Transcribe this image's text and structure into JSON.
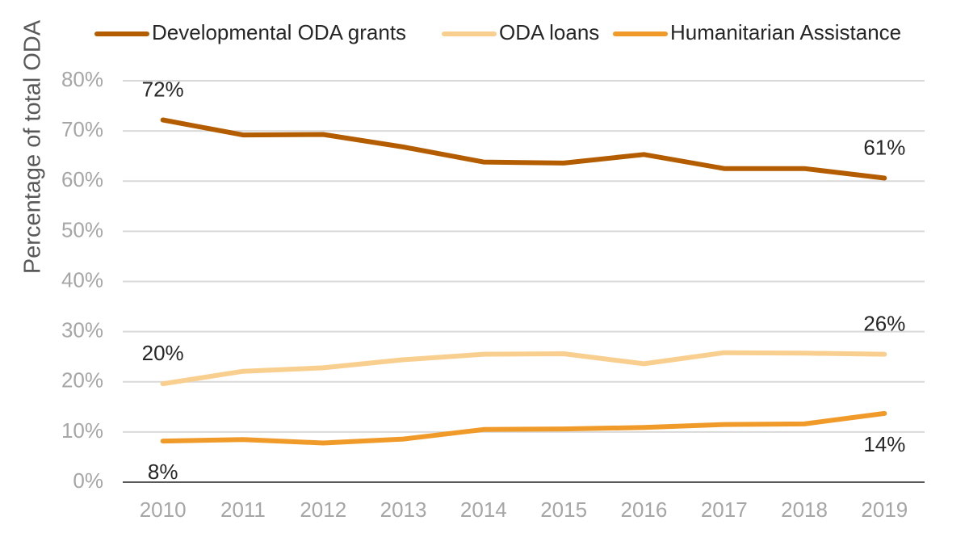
{
  "chart_data": {
    "type": "line",
    "ylabel": "Percentage of total ODA",
    "xlabel": "",
    "ylim": [
      0,
      80
    ],
    "yticks": [
      "0%",
      "10%",
      "20%",
      "30%",
      "40%",
      "50%",
      "60%",
      "70%",
      "80%"
    ],
    "categories": [
      "2010",
      "2011",
      "2012",
      "2013",
      "2014",
      "2015",
      "2016",
      "2017",
      "2018",
      "2019"
    ],
    "grid": true,
    "legend_position": "top",
    "series": [
      {
        "name": "Developmental ODA grants",
        "color": "#b35c00",
        "values": [
          72.2,
          69.2,
          69.3,
          66.8,
          63.8,
          63.6,
          65.3,
          62.5,
          62.5,
          60.6
        ],
        "labels": [
          {
            "index": 0,
            "text": "72%",
            "pos": "above"
          },
          {
            "index": 9,
            "text": "61%",
            "pos": "above"
          }
        ]
      },
      {
        "name": "ODA loans",
        "color": "#f9cf8f",
        "values": [
          19.6,
          22.1,
          22.8,
          24.4,
          25.5,
          25.6,
          23.6,
          25.8,
          25.7,
          25.5
        ],
        "labels": [
          {
            "index": 0,
            "text": "20%",
            "pos": "above"
          },
          {
            "index": 9,
            "text": "26%",
            "pos": "above"
          }
        ]
      },
      {
        "name": "Humanitarian Assistance",
        "color": "#f09a2a",
        "values": [
          8.2,
          8.5,
          7.8,
          8.6,
          10.5,
          10.6,
          10.9,
          11.5,
          11.6,
          13.7
        ],
        "labels": [
          {
            "index": 0,
            "text": "8%",
            "pos": "below"
          },
          {
            "index": 9,
            "text": "14%",
            "pos": "below"
          }
        ]
      }
    ]
  }
}
